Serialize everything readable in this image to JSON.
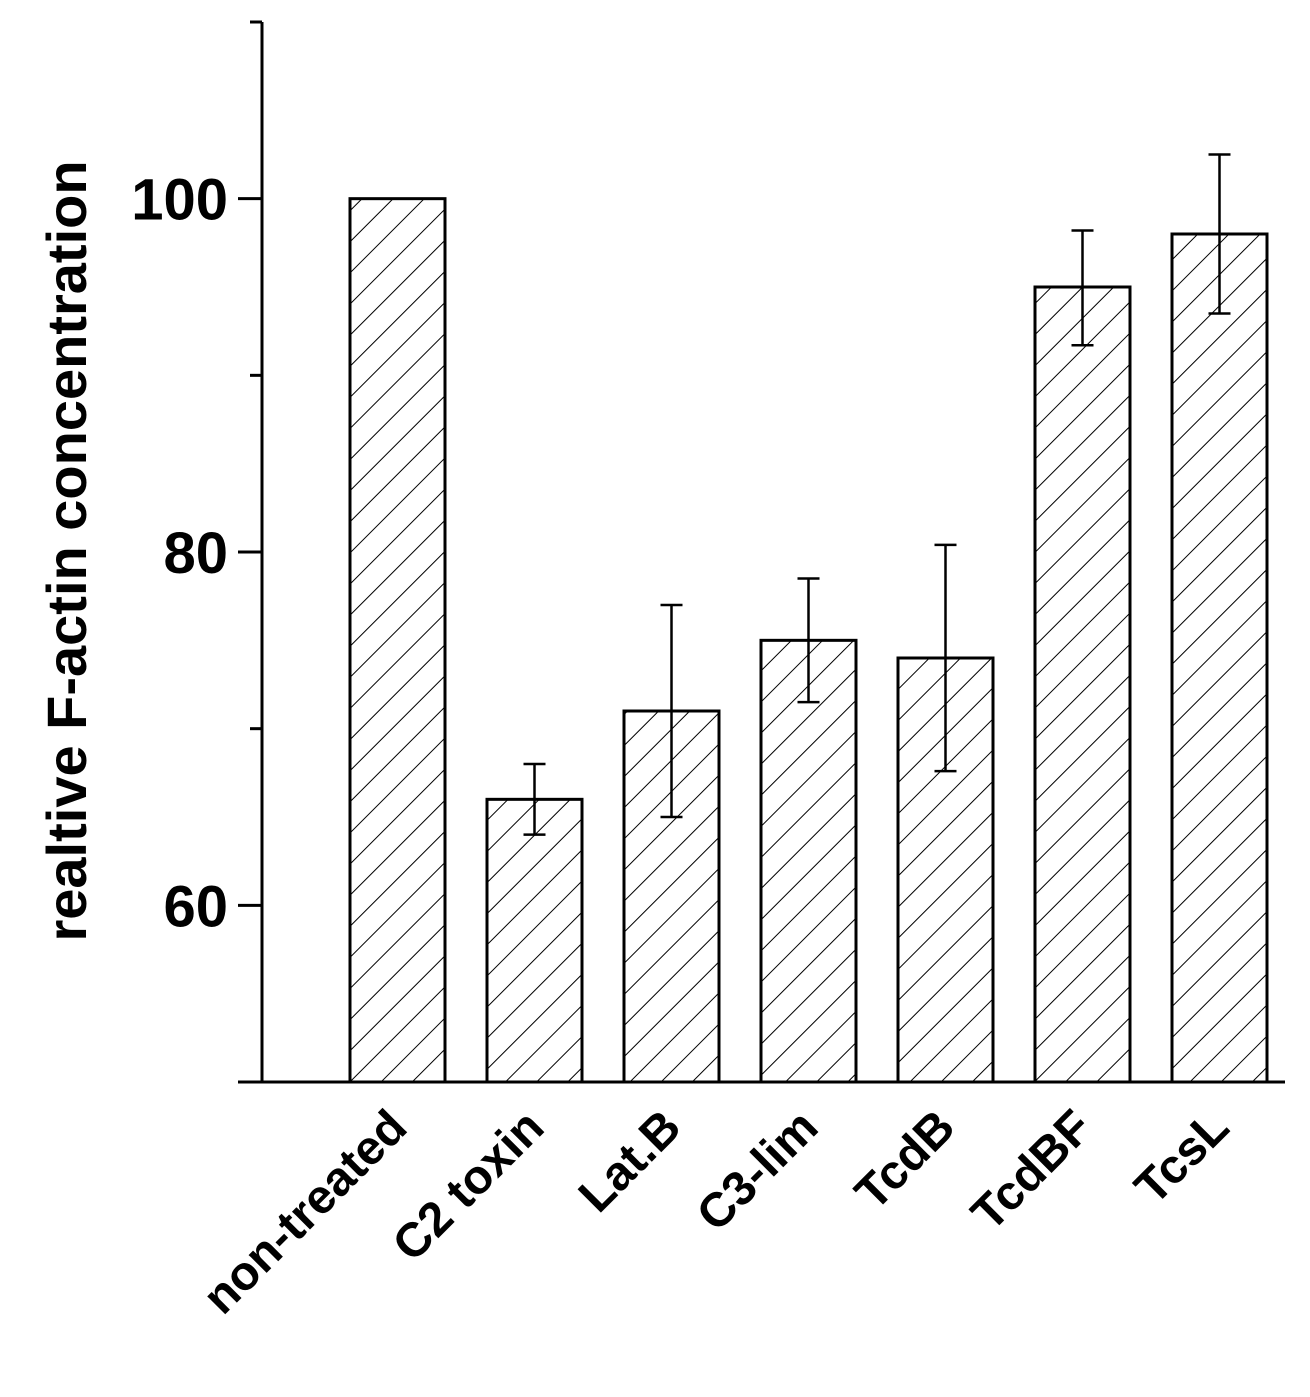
{
  "chart_data": {
    "type": "bar",
    "title": "",
    "xlabel": "",
    "ylabel": "realtive F-actin concentration",
    "categories": [
      "non-treated",
      "C2 toxin",
      "Lat.B",
      "C3-lim",
      "TcdB",
      "TcdBF",
      "TcsL"
    ],
    "values": [
      100,
      66,
      71,
      75,
      74,
      95,
      98
    ],
    "error_upper": [
      0,
      2,
      6,
      3.5,
      6.4,
      3.2,
      4.5
    ],
    "error_lower": [
      0,
      2,
      6,
      3.5,
      6.4,
      3.3,
      4.5
    ],
    "ylim": [
      50,
      110
    ],
    "yticks_major": [
      60,
      80,
      100
    ],
    "yticks_minor": [
      50,
      70,
      90,
      110
    ],
    "grid": false,
    "legend": "none",
    "bar_pattern": "diagonal-hatch",
    "bar_fill": "#ffffff",
    "line_color": "#000000"
  }
}
